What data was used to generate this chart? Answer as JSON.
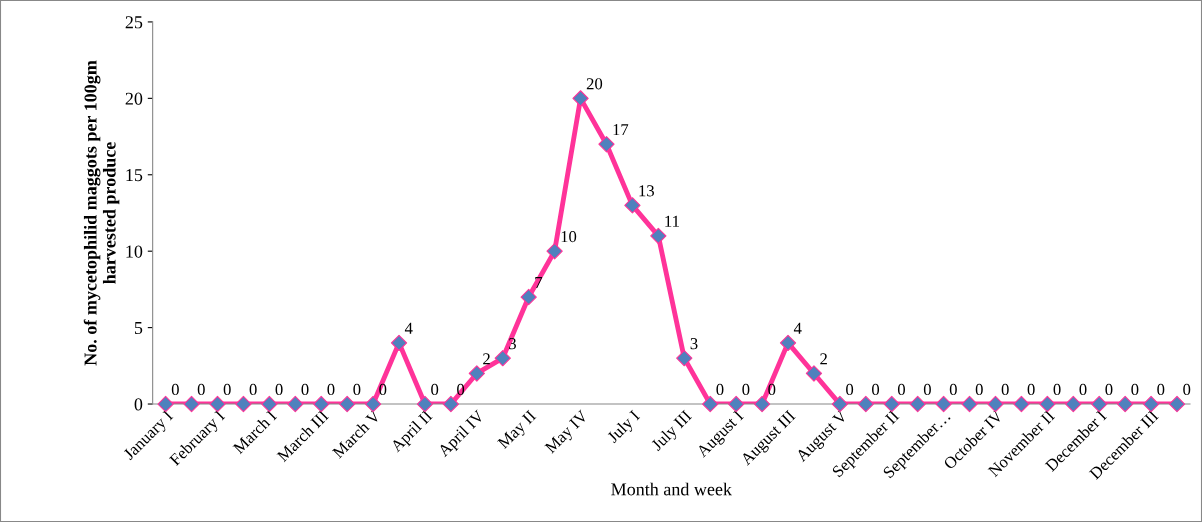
{
  "chart_data": {
    "type": "line",
    "xlabel": "Month and week",
    "ylabel": "No. of mycetophilid maggots per 100gm\nharvested produce",
    "categories": [
      "January I",
      null,
      "February I",
      null,
      "March I",
      null,
      "March III",
      null,
      "March V",
      null,
      "April II",
      null,
      "April IV",
      null,
      "May II",
      null,
      "May IV",
      null,
      "July I",
      null,
      "July III",
      null,
      "August I",
      null,
      "August III",
      null,
      "August V",
      null,
      "September II",
      null,
      "September…",
      null,
      "October IV",
      null,
      "November II",
      null,
      "December I",
      null,
      "December III",
      null
    ],
    "series": [
      {
        "color": "#ff3399",
        "colors": [
          "#4f81bd",
          "#4f81bd",
          "#4f81bd",
          "#4f81bd",
          "#4f81bd",
          "#4f81bd",
          "#4f81bd",
          "#4f81bd",
          "#4f81bd",
          "#4f81bd",
          "#4f81bd",
          "#4f81bd",
          "#4f81bd",
          "#4f81bd",
          "#4f81bd",
          "#4f81bd",
          "#4f81bd",
          "#4f81bd",
          "#4f81bd",
          "#4f81bd",
          "#4f81bd",
          "#4f81bd",
          "#4f81bd",
          "#4f81bd",
          "#4f81bd",
          "#4f81bd",
          "#4f81bd",
          "#4f81bd",
          "#4f81bd",
          "#4f81bd",
          "#4f81bd",
          "#4f81bd",
          "#4f81bd",
          "#4f81bd",
          "#4f81bd",
          "#4f81bd",
          "#4f81bd",
          "#4f81bd",
          "#4f81bd",
          "#4f81bd"
        ],
        "values": [
          0,
          0,
          0,
          0,
          0,
          0,
          0,
          0,
          0,
          4,
          0,
          0,
          2,
          3,
          7,
          10,
          20,
          17,
          13,
          11,
          3,
          0,
          0,
          0,
          4,
          2,
          0,
          0,
          0,
          0,
          0,
          0,
          0,
          0,
          0,
          0,
          0,
          0,
          0,
          0
        ]
      }
    ],
    "ylim": [
      0,
      25
    ],
    "yticks": [
      0,
      5,
      10,
      15,
      20,
      25
    ],
    "marker": "diamond",
    "line_style": "solid",
    "grid": false,
    "legend": false,
    "data_labels": true
  }
}
